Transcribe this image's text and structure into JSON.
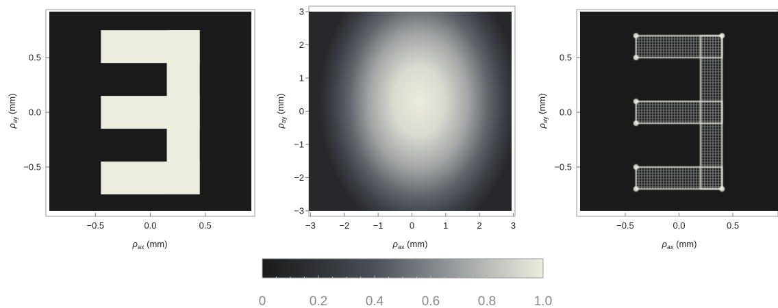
{
  "figure": {
    "colormap": {
      "stops": [
        {
          "v": 0.0,
          "color": "#1a1a1a"
        },
        {
          "v": 0.2,
          "color": "#2f3237"
        },
        {
          "v": 0.4,
          "color": "#4b5058"
        },
        {
          "v": 0.6,
          "color": "#7f848a"
        },
        {
          "v": 0.8,
          "color": "#b9bbb7"
        },
        {
          "v": 1.0,
          "color": "#ececdf"
        }
      ]
    },
    "colorbar": {
      "range": [
        0,
        1
      ],
      "ticks": [
        "0",
        "0.2",
        "0.4",
        "0.6",
        "0.8",
        "1.0"
      ]
    }
  },
  "chart_data": [
    {
      "type": "heatmap",
      "panel": "left",
      "title": "",
      "xlabel": "ρax (mm)",
      "ylabel": "ρay (mm)",
      "xlim": [
        -0.92,
        0.92
      ],
      "ylim": [
        -0.9,
        0.92
      ],
      "xticks": [
        -0.5,
        0.0,
        0.5
      ],
      "xtick_labels": [
        "−0.5",
        "0.0",
        "0.5"
      ],
      "yticks": [
        -0.5,
        0.0,
        0.5
      ],
      "ytick_labels": [
        "−0.5",
        "0.0",
        "0.5"
      ],
      "field": {
        "description": "letter E aperture, intensity 1 inside, 0 outside",
        "rects": [
          {
            "x0": -0.45,
            "x1": 0.45,
            "y0": 0.45,
            "y1": 0.75,
            "value": 1
          },
          {
            "x0": 0.15,
            "x1": 0.45,
            "y0": -0.75,
            "y1": 0.75,
            "value": 1
          },
          {
            "x0": -0.45,
            "x1": 0.45,
            "y0": -0.15,
            "y1": 0.15,
            "value": 1
          },
          {
            "x0": -0.45,
            "x1": 0.45,
            "y0": -0.75,
            "y1": -0.45,
            "value": 1
          }
        ]
      }
    },
    {
      "type": "heatmap",
      "panel": "middle",
      "title": "",
      "xlabel": "ρax (mm)",
      "ylabel": "ρay (mm)",
      "xlim": [
        -3.05,
        2.95
      ],
      "ylim": [
        -3.0,
        3.0
      ],
      "xticks": [
        -3,
        -2,
        -1,
        0,
        1,
        2,
        3
      ],
      "xtick_labels": [
        "−3",
        "−2",
        "−1",
        "0",
        "1",
        "2",
        "3"
      ],
      "yticks": [
        -3,
        -2,
        -1,
        0,
        1,
        2,
        3
      ],
      "ytick_labels": [
        "−3",
        "−2",
        "−1",
        "0",
        "1",
        "2",
        "3"
      ],
      "field": {
        "description": "broad elliptical Gaussian-like intensity",
        "center": [
          0.2,
          0.3
        ],
        "sigma": [
          1.55,
          2.15
        ],
        "peak": 1.0
      }
    },
    {
      "type": "heatmap",
      "panel": "right",
      "title": "",
      "xlabel": "ρax (mm)",
      "ylabel": "ρay (mm)",
      "xlim": [
        -0.92,
        0.92
      ],
      "ylim": [
        -0.9,
        0.92
      ],
      "xticks": [
        -0.5,
        0.0,
        0.5
      ],
      "xtick_labels": [
        "−0.5",
        "0.0",
        "0.5"
      ],
      "yticks": [
        -0.5,
        0.0,
        0.5
      ],
      "ytick_labels": [
        "−0.5",
        "0.0",
        "0.5"
      ],
      "field": {
        "description": "edge-enhanced (outline) image of the letter E with fringe ripple",
        "rects": [
          {
            "x0": -0.4,
            "x1": 0.4,
            "y0": 0.5,
            "y1": 0.7
          },
          {
            "x0": 0.2,
            "x1": 0.4,
            "y0": -0.7,
            "y1": 0.7
          },
          {
            "x0": -0.4,
            "x1": 0.4,
            "y0": -0.1,
            "y1": 0.1
          },
          {
            "x0": -0.4,
            "x1": 0.4,
            "y0": -0.7,
            "y1": -0.5
          }
        ],
        "edge_intensity": 0.85
      }
    }
  ]
}
